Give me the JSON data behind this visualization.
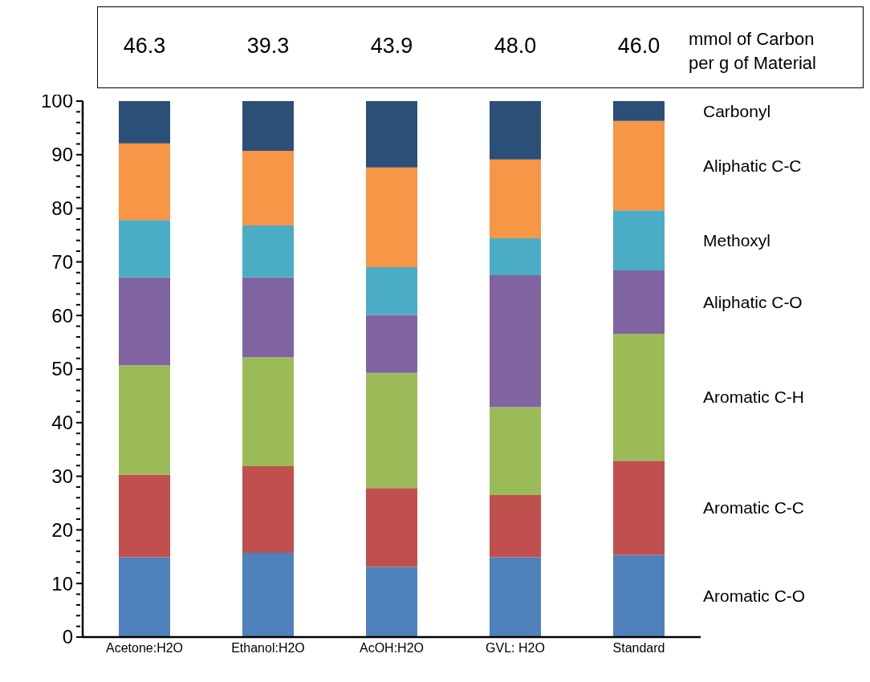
{
  "chart_data": {
    "type": "bar",
    "stacked": true,
    "legend": "right",
    "grid": false,
    "categories": [
      "Acetone:H2O",
      "Ethanol:H2O",
      "AcOH:H2O",
      "GVL: H2O",
      "Standard"
    ],
    "series": [
      {
        "name": "Aromatic C-O",
        "color": "#4f81bd",
        "values": [
          14.9,
          15.7,
          13.1,
          14.9,
          15.3
        ]
      },
      {
        "name": "Aromatic C-C",
        "color": "#c0504d",
        "values": [
          15.4,
          16.2,
          14.7,
          11.6,
          17.6
        ]
      },
      {
        "name": "Aromatic C-H",
        "color": "#9bbb59",
        "values": [
          20.4,
          20.3,
          21.5,
          16.4,
          23.7
        ]
      },
      {
        "name": "Aliphatic C-O",
        "color": "#8064a2",
        "values": [
          16.4,
          14.9,
          10.8,
          24.6,
          11.8
        ]
      },
      {
        "name": "Methoxyl",
        "color": "#4bacc6",
        "values": [
          10.7,
          9.7,
          8.9,
          6.9,
          11.2
        ]
      },
      {
        "name": "Aliphatic C-C",
        "color": "#f79646",
        "values": [
          14.3,
          13.9,
          18.6,
          14.7,
          16.7
        ]
      },
      {
        "name": "Carbonyl",
        "color": "#2c4f78",
        "values": [
          7.9,
          9.3,
          12.4,
          10.9,
          3.7
        ]
      }
    ],
    "ylim": [
      0,
      100
    ],
    "yticks": [
      0,
      {
        "value": 2,
        "label": null
      },
      {
        "value": 4,
        "label": null
      },
      {
        "value": 6,
        "label": null
      },
      {
        "value": 8,
        "label": null
      },
      10,
      {
        "value": 12,
        "label": null
      },
      {
        "value": 14,
        "label": null
      },
      {
        "value": 16,
        "label": null
      },
      {
        "value": 18,
        "label": null
      },
      20,
      {
        "value": 22,
        "label": null
      },
      {
        "value": 24,
        "label": null
      },
      {
        "value": 26,
        "label": null
      },
      {
        "value": 28,
        "label": null
      },
      30,
      {
        "value": 32,
        "label": null
      },
      {
        "value": 34,
        "label": null
      },
      {
        "value": 36,
        "label": null
      },
      {
        "value": 38,
        "label": null
      },
      40,
      {
        "value": 42,
        "label": null
      },
      {
        "value": 44,
        "label": null
      },
      {
        "value": 46,
        "label": null
      },
      {
        "value": 48,
        "label": null
      },
      50,
      {
        "value": 52,
        "label": null
      },
      {
        "value": 54,
        "label": null
      },
      {
        "value": 56,
        "label": null
      },
      {
        "value": 58,
        "label": null
      },
      60,
      {
        "value": 62,
        "label": null
      },
      {
        "value": 64,
        "label": null
      },
      {
        "value": 66,
        "label": null
      },
      {
        "value": 68,
        "label": null
      },
      70,
      {
        "value": 72,
        "label": null
      },
      {
        "value": 74,
        "label": null
      },
      {
        "value": 76,
        "label": null
      },
      {
        "value": 78,
        "label": null
      },
      80,
      {
        "value": 82,
        "label": null
      },
      {
        "value": 84,
        "label": null
      },
      {
        "value": 86,
        "label": null
      },
      {
        "value": 88,
        "label": null
      },
      90,
      {
        "value": 92,
        "label": null
      },
      {
        "value": 94,
        "label": null
      },
      {
        "value": 96,
        "label": null
      },
      {
        "value": 98,
        "label": null
      },
      100
    ],
    "annotations": [
      "46.3",
      "39.3",
      "43.9",
      "48.0",
      "46.0",
      "mmol of Carbon per g of Material"
    ]
  }
}
